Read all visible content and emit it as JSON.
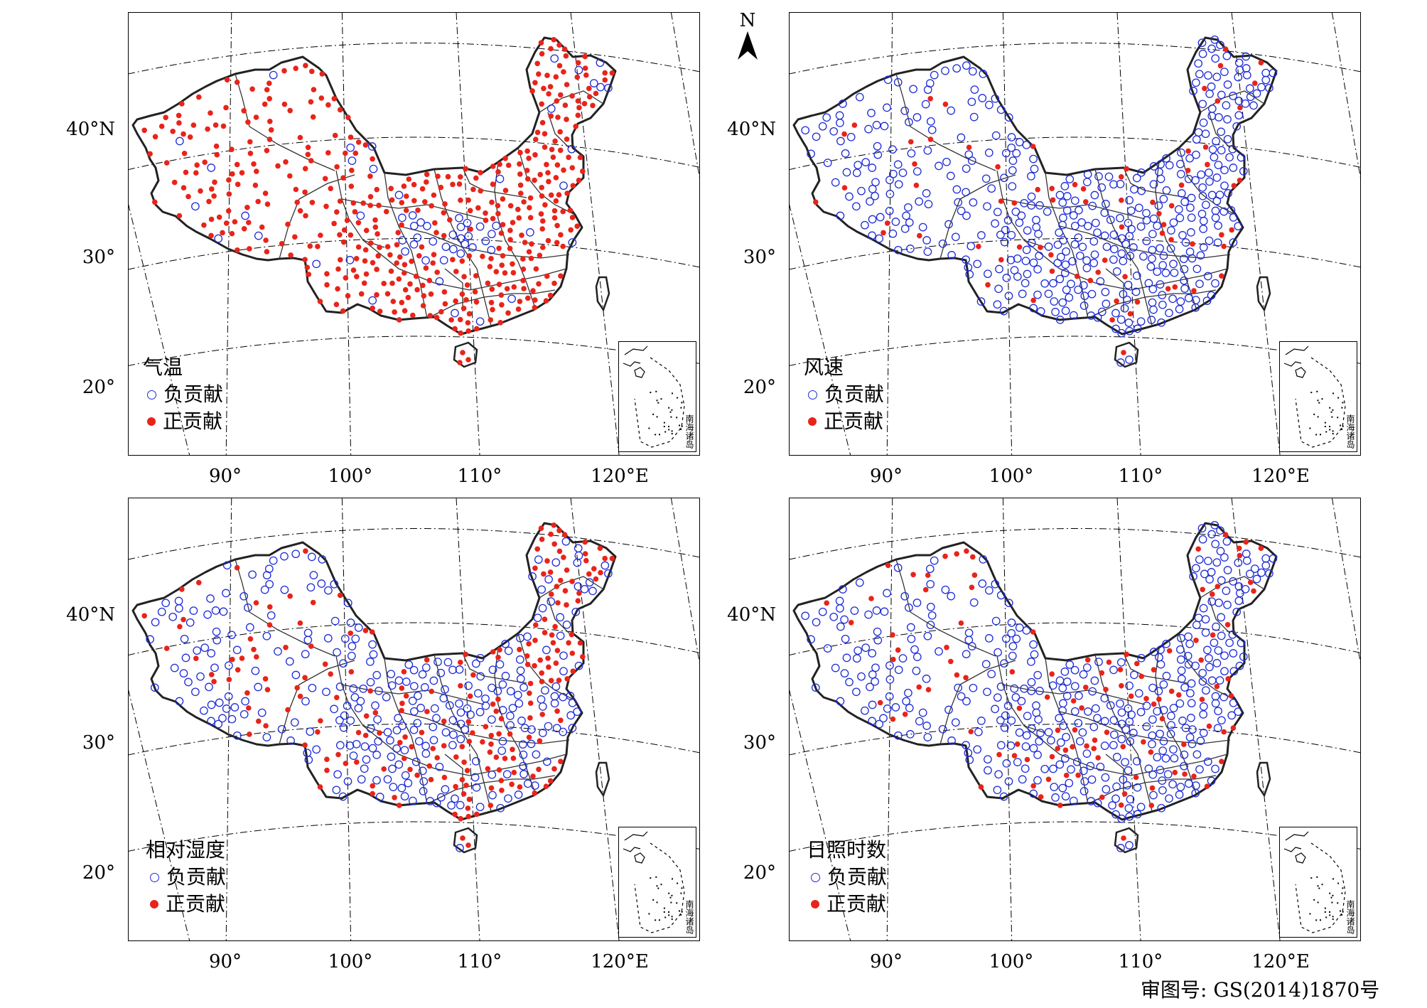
{
  "panels": [
    {
      "id": "temp",
      "variable": "气温",
      "dominant": "positive"
    },
    {
      "id": "wind",
      "variable": "风速",
      "dominant": "negative"
    },
    {
      "id": "rh",
      "variable": "相对湿度",
      "dominant": "mixed"
    },
    {
      "id": "sun",
      "variable": "日照时数",
      "dominant": "negative"
    }
  ],
  "legend": {
    "negative": "负贡献",
    "positive": "正贡献",
    "negative_color": "#1d2bd6",
    "positive_color": "#e8241a"
  },
  "lat_labels": [
    "40°N",
    "30°",
    "20°"
  ],
  "lon_labels": [
    "90°",
    "100°",
    "110°",
    "120°E"
  ],
  "inset_label": "南海诸岛",
  "north_label": "N",
  "approval_number": "审图号: GS(2014)1870号"
}
